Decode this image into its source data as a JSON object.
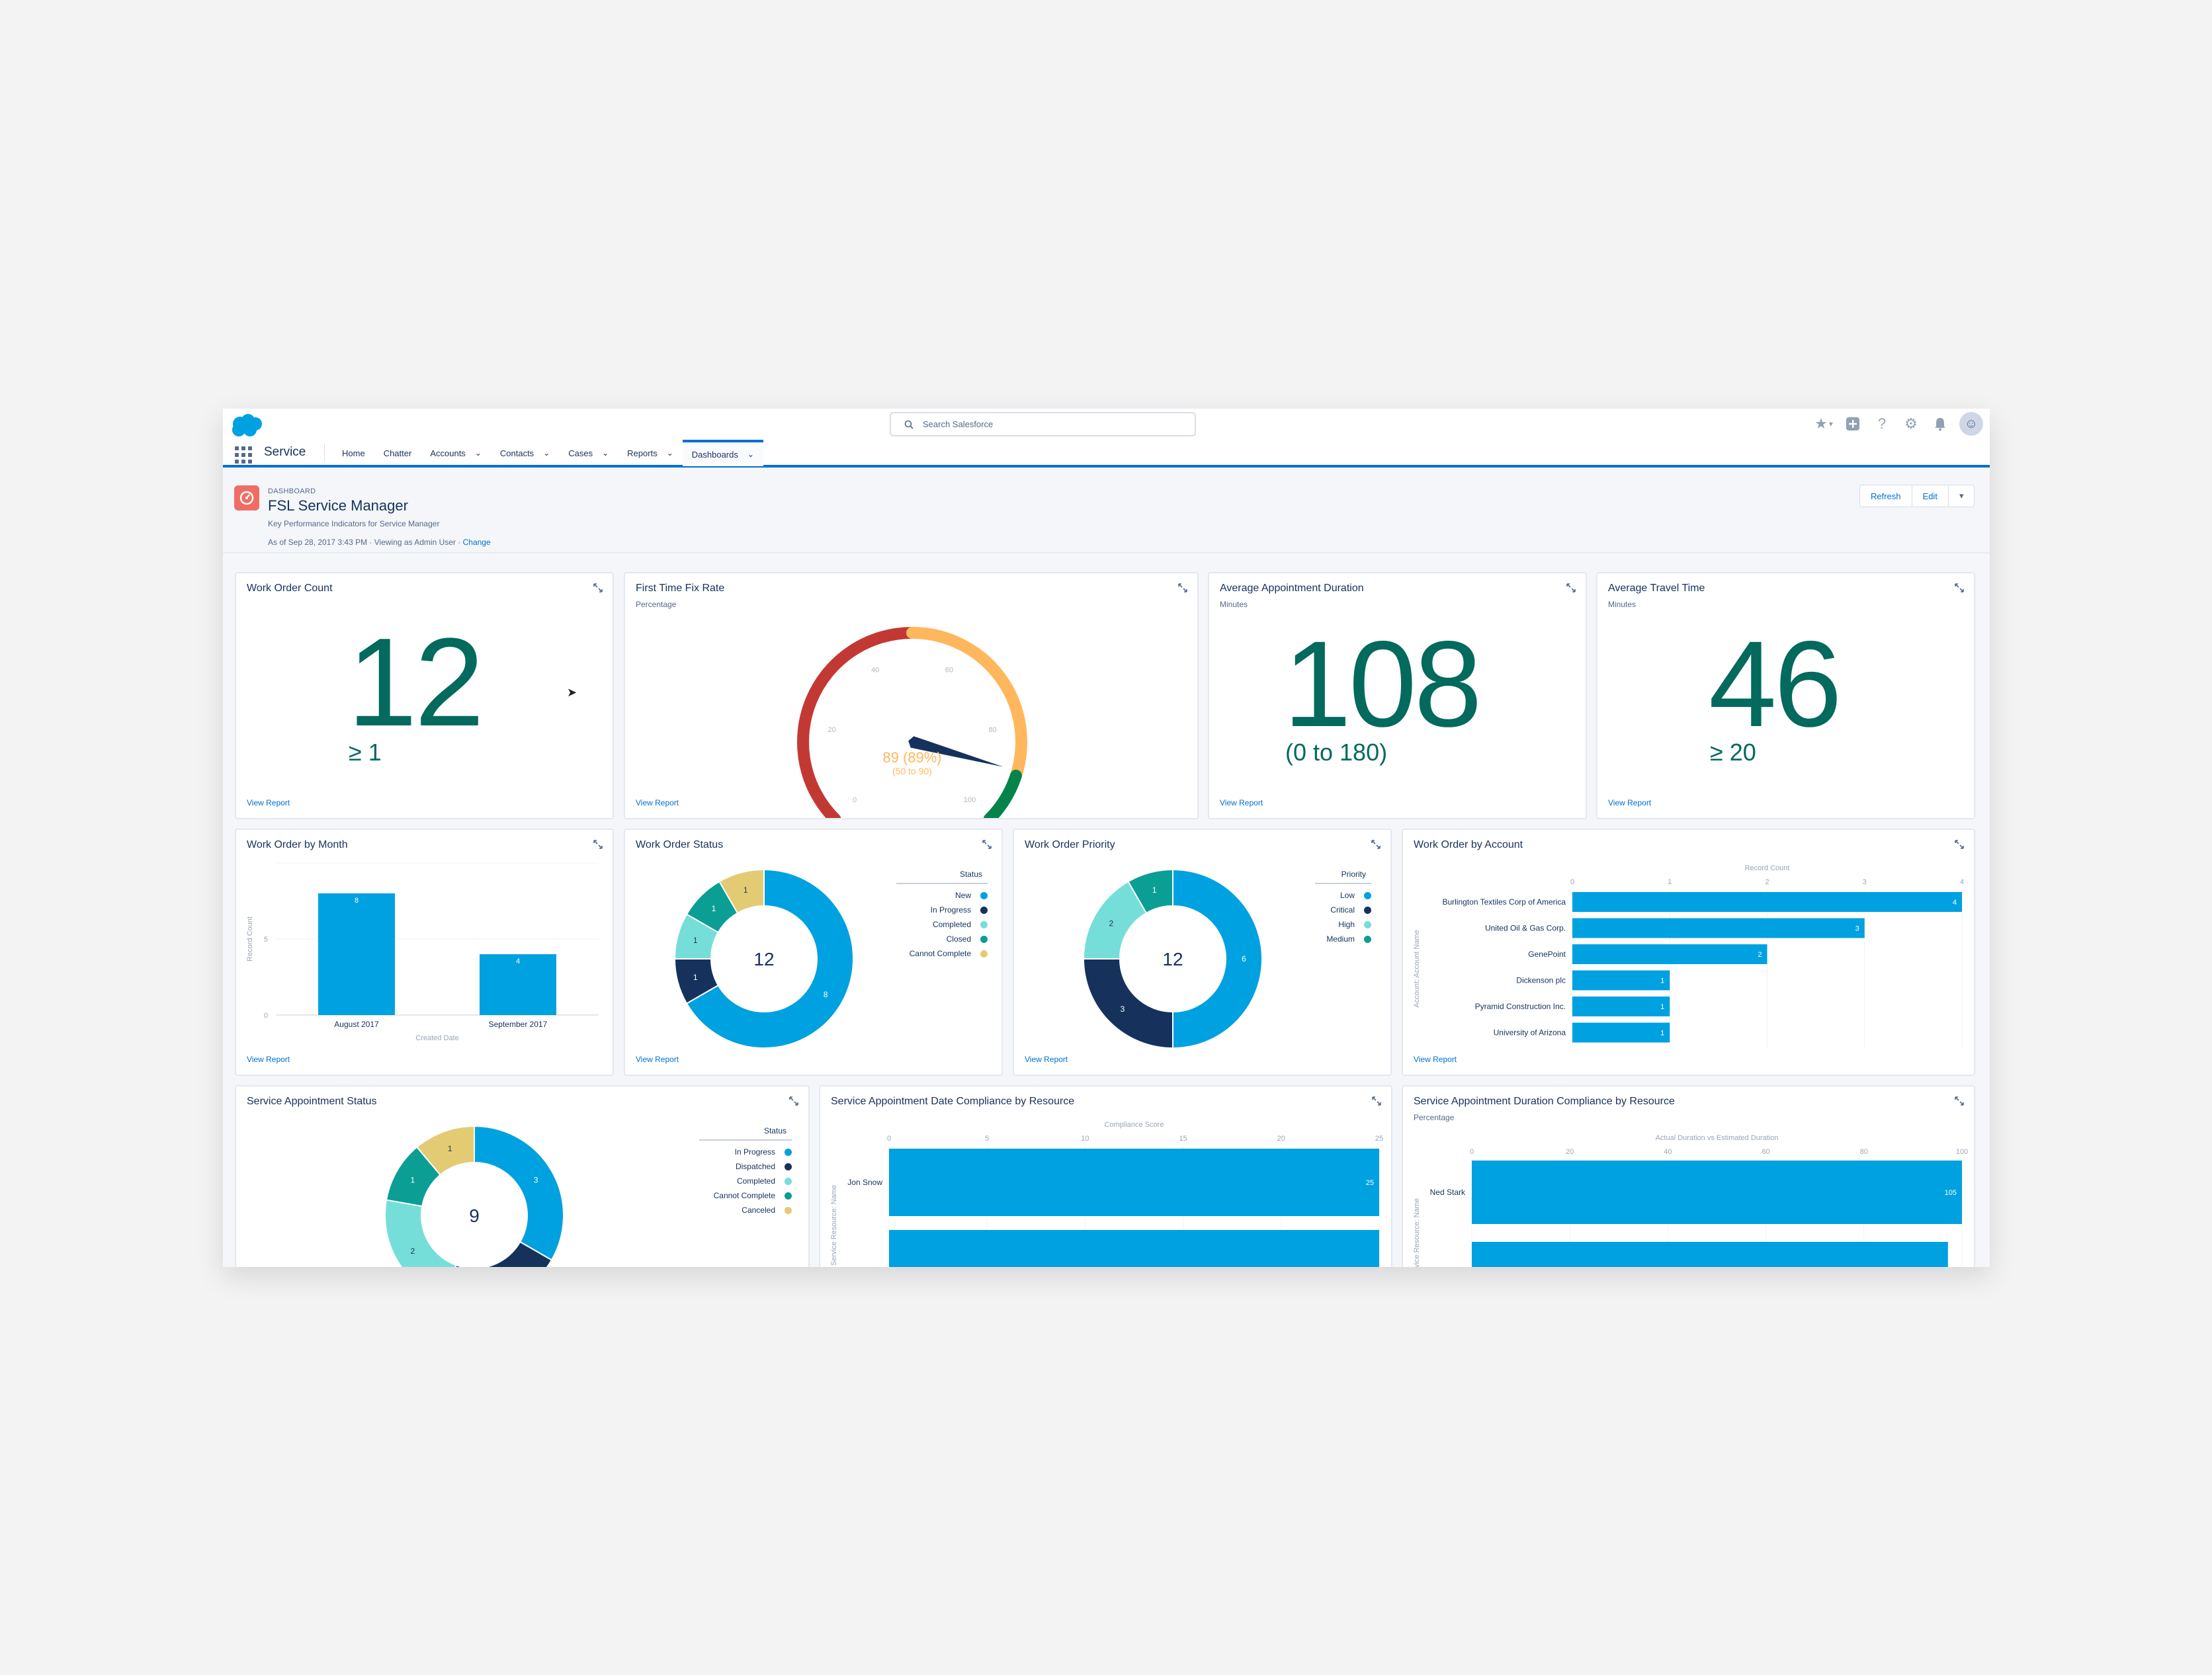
{
  "header": {
    "search_placeholder": "Search Salesforce",
    "app_name": "Service",
    "nav": [
      {
        "label": "Home",
        "chev": false
      },
      {
        "label": "Chatter",
        "chev": false
      },
      {
        "label": "Accounts",
        "chev": true
      },
      {
        "label": "Contacts",
        "chev": true
      },
      {
        "label": "Cases",
        "chev": true
      },
      {
        "label": "Reports",
        "chev": true
      },
      {
        "label": "Dashboards",
        "chev": true,
        "active": true
      }
    ]
  },
  "dashboard": {
    "label": "DASHBOARD",
    "title": "FSL Service Manager",
    "subtitle": "Key Performance Indicators for Service Manager",
    "as_of": "As of Sep 28, 2017 3:43 PM · Viewing as Admin User · ",
    "change_link": "Change",
    "refresh_label": "Refresh",
    "edit_label": "Edit"
  },
  "view_report": "View Report",
  "cards": {
    "work_order_count": {
      "title": "Work Order Count",
      "value": "12",
      "range": "≥ 1"
    },
    "first_time_fix": {
      "title": "First Time Fix Rate",
      "subtitle": "Percentage",
      "value": "89 (89%)",
      "range": "(50 to 90)"
    },
    "avg_appt_duration": {
      "title": "Average Appointment Duration",
      "subtitle": "Minutes",
      "value": "108",
      "range": "(0 to 180)"
    },
    "avg_travel_time": {
      "title": "Average Travel Time",
      "subtitle": "Minutes",
      "value": "46",
      "range": "≥ 20"
    },
    "wo_by_month": {
      "title": "Work Order by Month"
    },
    "wo_status": {
      "title": "Work Order Status"
    },
    "wo_priority": {
      "title": "Work Order Priority"
    },
    "wo_by_account": {
      "title": "Work Order by Account"
    },
    "sa_status": {
      "title": "Service Appointment Status"
    },
    "sa_date_compliance": {
      "title": "Service Appointment Date Compliance by Resource"
    },
    "sa_duration_compliance": {
      "title": "Service Appointment Duration Compliance by Resource",
      "subtitle": "Percentage"
    }
  },
  "colors": {
    "blue": "#00a1e0",
    "navy": "#16325c",
    "teal": "#0b9e95",
    "lightteal": "#76ded9",
    "gold": "#e3cb73",
    "metric": "#036a5d"
  },
  "chart_data": [
    {
      "type": "gauge",
      "title": "First Time Fix Rate",
      "min": 0,
      "max": 100,
      "value": 89,
      "ticks": [
        "0",
        "20",
        "40",
        "60",
        "80",
        "100"
      ],
      "bands": [
        {
          "to": 50,
          "color": "#c23934"
        },
        {
          "to": 90,
          "color": "#ffb75d"
        },
        {
          "to": 100,
          "color": "#04844b"
        }
      ]
    },
    {
      "type": "bar",
      "title": "Work Order by Month",
      "categories": [
        "August 2017",
        "September 2017"
      ],
      "values": [
        8,
        4
      ],
      "xlabel": "Created Date",
      "ylabel": "Record Count",
      "yticks": [
        "0",
        "5"
      ],
      "ylim": [
        0,
        10
      ]
    },
    {
      "type": "donut",
      "title": "Work Order Status",
      "total": "12",
      "legend_title": "Status",
      "slices": [
        {
          "name": "New",
          "value": 8,
          "color": "#00a1e0"
        },
        {
          "name": "In Progress",
          "value": 1,
          "color": "#16325c"
        },
        {
          "name": "Completed",
          "value": 1,
          "color": "#76ded9"
        },
        {
          "name": "Closed",
          "value": 1,
          "color": "#0b9e95"
        },
        {
          "name": "Cannot Complete",
          "value": 1,
          "color": "#e3cb73"
        }
      ]
    },
    {
      "type": "donut",
      "title": "Work Order Priority",
      "total": "12",
      "legend_title": "Priority",
      "slices": [
        {
          "name": "Low",
          "value": 6,
          "color": "#00a1e0"
        },
        {
          "name": "Critical",
          "value": 3,
          "color": "#16325c"
        },
        {
          "name": "High",
          "value": 2,
          "color": "#76ded9"
        },
        {
          "name": "Medium",
          "value": 1,
          "color": "#0b9e95"
        }
      ]
    },
    {
      "type": "hbar",
      "title": "Work Order by Account",
      "xlabel": "Record Count",
      "ylabel": "Account: Account Name",
      "xticks": [
        "0",
        "1",
        "2",
        "3",
        "4"
      ],
      "xlim": [
        0,
        4
      ],
      "categories": [
        "Burlington Textiles Corp of America",
        "United Oil & Gas Corp.",
        "GenePoint",
        "Dickenson plc",
        "Pyramid Construction Inc.",
        "University of Arizona"
      ],
      "values": [
        4,
        3,
        2,
        1,
        1,
        1
      ]
    },
    {
      "type": "donut",
      "title": "Service Appointment Status",
      "total": "9",
      "legend_title": "Status",
      "slices": [
        {
          "name": "In Progress",
          "value": 3,
          "color": "#00a1e0"
        },
        {
          "name": "Dispatched",
          "value": 2,
          "color": "#16325c"
        },
        {
          "name": "Completed",
          "value": 2,
          "color": "#76ded9"
        },
        {
          "name": "Cannot Complete",
          "value": 1,
          "color": "#0b9e95"
        },
        {
          "name": "Canceled",
          "value": 1,
          "color": "#e3cb73"
        }
      ],
      "visible_slice_labels": [
        "3",
        "2",
        "1",
        "1"
      ]
    },
    {
      "type": "hbar",
      "title": "Service Appointment Date Compliance by Resource",
      "xlabel": "Compliance Score",
      "ylabel": "Service Resource: Name",
      "xticks": [
        "0",
        "5",
        "10",
        "15",
        "20",
        "25"
      ],
      "xlim": [
        0,
        25
      ],
      "categories": [
        "Jon Snow",
        ""
      ],
      "values": [
        25,
        25
      ],
      "value_labels": [
        "25",
        ""
      ]
    },
    {
      "type": "hbar",
      "title": "Service Appointment Duration Compliance by Resource",
      "xlabel": "Actual Duration vs Estimated Duration",
      "ylabel": "Service Resource: Name",
      "xticks": [
        "0",
        "20",
        "40",
        "60",
        "80",
        "100"
      ],
      "xlim": [
        0,
        105
      ],
      "categories": [
        "Ned Stark",
        ""
      ],
      "values": [
        105,
        102
      ],
      "value_labels": [
        "105",
        ""
      ]
    }
  ]
}
